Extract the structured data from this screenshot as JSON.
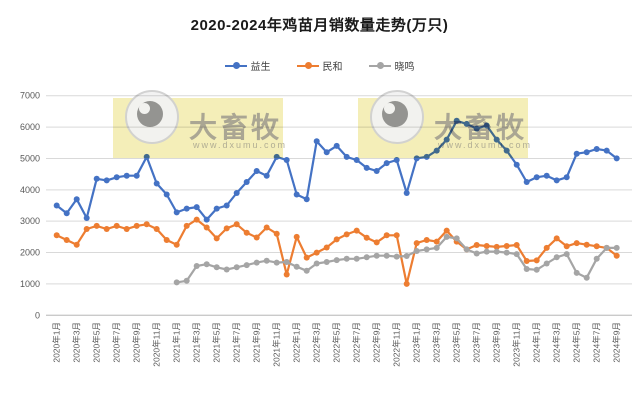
{
  "title": "2020-2024年鸡苗月销数量走势(万只)",
  "watermark": {
    "brand": "大畜牧",
    "url": "www.dxumu.com"
  },
  "colors": {
    "yisheng": "#4472C4",
    "minhe": "#ED7D31",
    "xiaoming": "#A5A5A5",
    "grid": "#D9D9D9",
    "axis_text": "#595959",
    "title_text": "#1A1A1A"
  },
  "chart_data": {
    "type": "line",
    "title": "2020-2024年鸡苗月销数量走势(万只)",
    "xlabel": "",
    "ylabel": "",
    "ylim": [
      0,
      7000
    ],
    "ytick_interval": 1000,
    "yticks": [
      0,
      1000,
      2000,
      3000,
      4000,
      5000,
      6000,
      7000
    ],
    "grid": true,
    "legend_position": "top",
    "x_tick_step": 2,
    "x": [
      "2020年1月",
      "2020年2月",
      "2020年3月",
      "2020年4月",
      "2020年5月",
      "2020年6月",
      "2020年7月",
      "2020年8月",
      "2020年9月",
      "2020年10月",
      "2020年11月",
      "2020年12月",
      "2021年1月",
      "2021年2月",
      "2021年3月",
      "2021年4月",
      "2021年5月",
      "2021年6月",
      "2021年7月",
      "2021年8月",
      "2021年9月",
      "2021年10月",
      "2021年11月",
      "2021年12月",
      "2022年1月",
      "2022年2月",
      "2022年3月",
      "2022年4月",
      "2022年5月",
      "2022年6月",
      "2022年7月",
      "2022年8月",
      "2022年9月",
      "2022年10月",
      "2022年11月",
      "2022年12月",
      "2023年1月",
      "2023年2月",
      "2023年3月",
      "2023年4月",
      "2023年5月",
      "2023年6月",
      "2023年7月",
      "2023年8月",
      "2023年9月",
      "2023年10月",
      "2023年11月",
      "2023年12月",
      "2024年1月",
      "2024年2月",
      "2024年3月",
      "2024年4月",
      "2024年5月",
      "2024年6月",
      "2024年7月",
      "2024年8月",
      "2024年9月"
    ],
    "series": [
      {
        "name": "益生",
        "color": "#4472C4",
        "values": [
          3500,
          3250,
          3700,
          3100,
          4350,
          4300,
          4400,
          4450,
          4450,
          5050,
          4200,
          3850,
          3280,
          3400,
          3450,
          3050,
          3400,
          3500,
          3900,
          4250,
          4600,
          4450,
          5050,
          4950,
          3850,
          3700,
          5550,
          5200,
          5400,
          5050,
          4950,
          4700,
          4600,
          4850,
          4950,
          3900,
          5000,
          5050,
          5250,
          5600,
          6200,
          6100,
          5950,
          6050,
          5600,
          5250,
          4800,
          4250,
          4400,
          4450,
          4300,
          4400,
          5150,
          5200,
          5300,
          5250,
          5000
        ]
      },
      {
        "name": "民和",
        "color": "#ED7D31",
        "values": [
          2550,
          2400,
          2250,
          2750,
          2850,
          2750,
          2850,
          2750,
          2850,
          2900,
          2750,
          2400,
          2250,
          2850,
          3050,
          2800,
          2450,
          2770,
          2900,
          2630,
          2480,
          2800,
          2600,
          1300,
          2500,
          1840,
          2000,
          2160,
          2420,
          2580,
          2700,
          2475,
          2325,
          2550,
          2550,
          1000,
          2300,
          2400,
          2350,
          2700,
          2350,
          2100,
          2240,
          2210,
          2180,
          2210,
          2240,
          1730,
          1750,
          2150,
          2450,
          2200,
          2300,
          2250,
          2200,
          2150,
          1900
        ]
      },
      {
        "name": "晓鸣",
        "color": "#A5A5A5",
        "values": [
          null,
          null,
          null,
          null,
          null,
          null,
          null,
          null,
          null,
          null,
          null,
          null,
          1050,
          1100,
          1570,
          1630,
          1530,
          1460,
          1530,
          1600,
          1680,
          1740,
          1680,
          1700,
          1550,
          1420,
          1650,
          1700,
          1760,
          1800,
          1800,
          1850,
          1900,
          1900,
          1870,
          1890,
          2050,
          2100,
          2150,
          2500,
          2450,
          2100,
          1970,
          2030,
          2030,
          2000,
          1950,
          1475,
          1450,
          1650,
          1850,
          1950,
          1350,
          1200,
          1800,
          2150,
          2150
        ]
      }
    ]
  }
}
